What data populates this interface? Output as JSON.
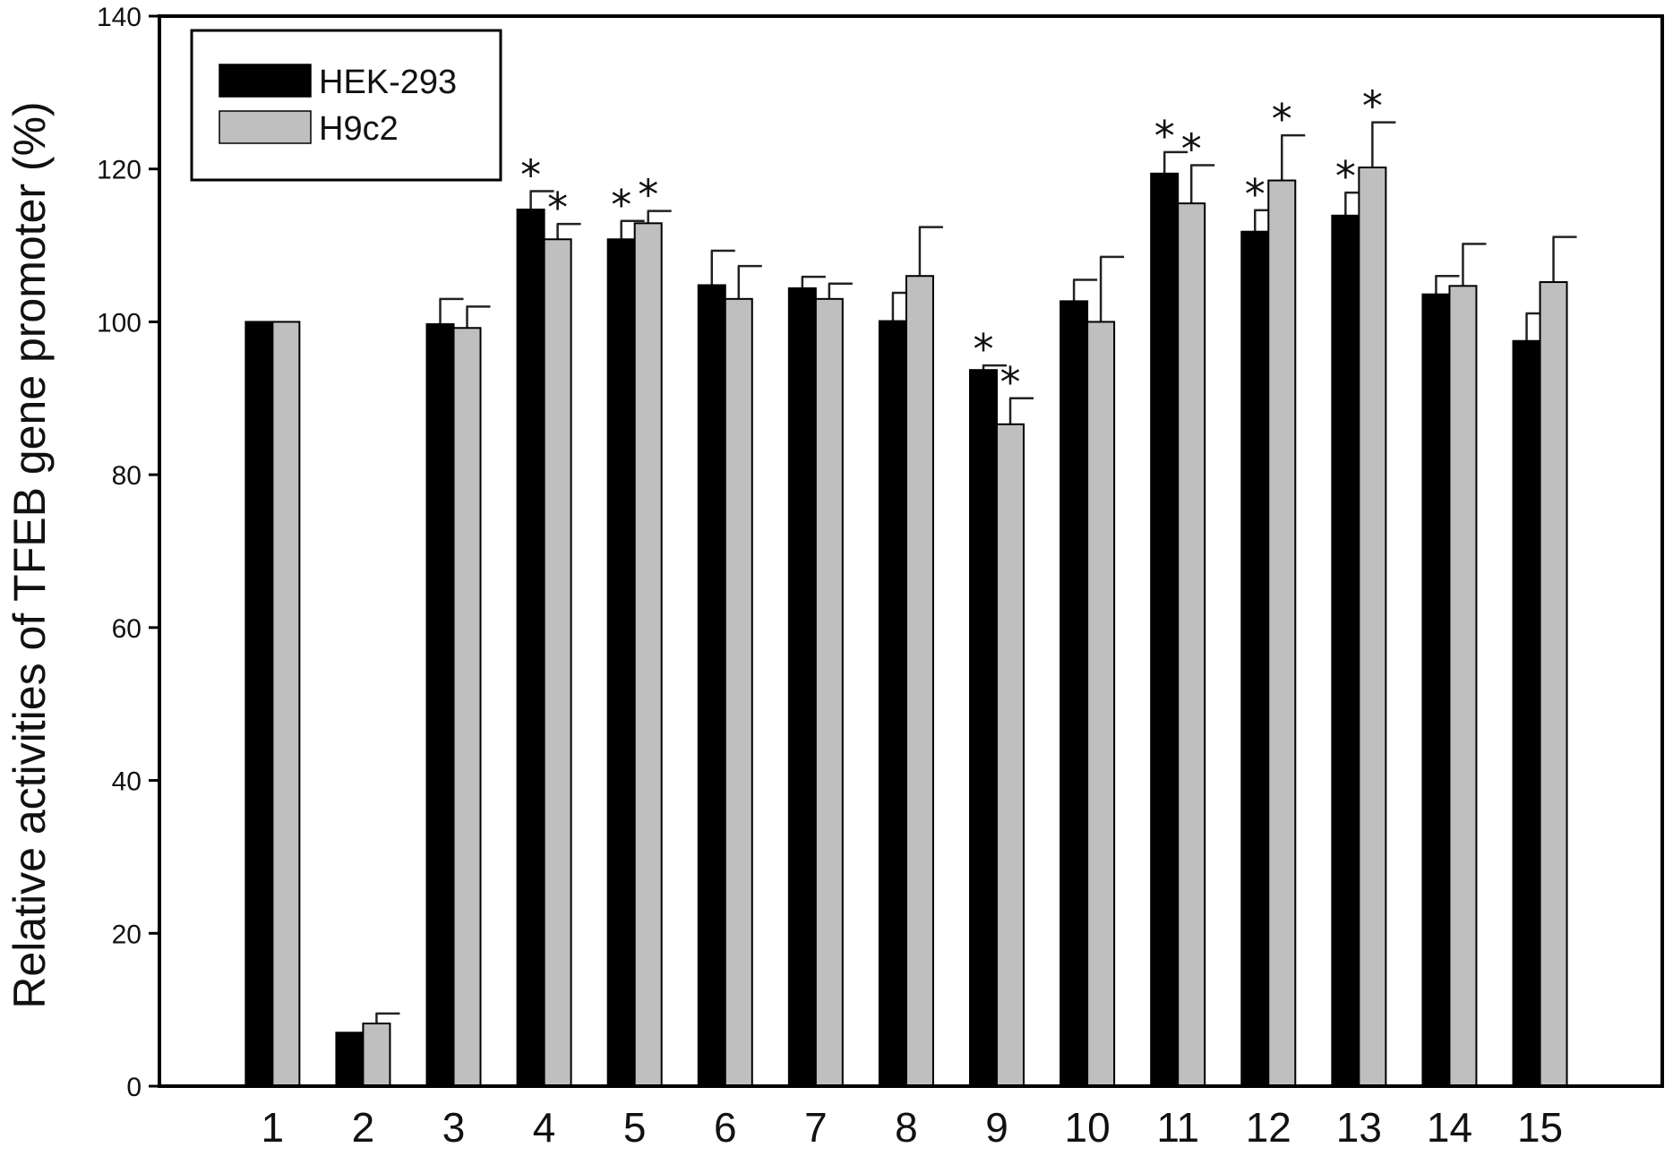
{
  "chart_data": {
    "type": "bar",
    "title": "",
    "xlabel": "",
    "ylabel": "Relative activities of TFEB gene promoter (%)",
    "ylim": [
      0,
      140
    ],
    "yticks": [
      0,
      20,
      40,
      60,
      80,
      100,
      120,
      140
    ],
    "grid": false,
    "legend_position": "top-left",
    "categories": [
      "1",
      "2",
      "3",
      "4",
      "5",
      "6",
      "7",
      "8",
      "9",
      "10",
      "11",
      "12",
      "13",
      "14",
      "15"
    ],
    "series": [
      {
        "name": "HEK-293",
        "color": "#000000",
        "values": [
          100,
          7,
          99.7,
          114.7,
          110.8,
          104.8,
          104.4,
          100.1,
          93.7,
          102.7,
          119.4,
          111.8,
          113.9,
          103.6,
          97.5
        ],
        "errors": [
          0,
          0,
          3.3,
          2.4,
          2.4,
          4.5,
          1.5,
          3.7,
          0.6,
          2.8,
          2.8,
          2.8,
          3.0,
          2.4,
          3.6
        ],
        "significant": [
          false,
          false,
          false,
          true,
          true,
          false,
          false,
          false,
          true,
          false,
          true,
          true,
          true,
          false,
          false
        ]
      },
      {
        "name": "H9c2",
        "color": "#bfbfbf",
        "values": [
          100,
          8.2,
          99.2,
          110.8,
          112.9,
          103.0,
          103.0,
          106.0,
          86.6,
          100.0,
          115.5,
          118.5,
          120.2,
          104.7,
          105.2
        ],
        "errors": [
          0,
          1.3,
          2.8,
          2.0,
          1.6,
          4.3,
          2.0,
          6.4,
          3.4,
          8.5,
          5.0,
          5.9,
          5.9,
          5.5,
          5.9
        ],
        "significant": [
          false,
          false,
          false,
          true,
          true,
          false,
          false,
          false,
          true,
          false,
          true,
          true,
          true,
          false,
          false
        ]
      }
    ],
    "significance_marker": "*"
  }
}
